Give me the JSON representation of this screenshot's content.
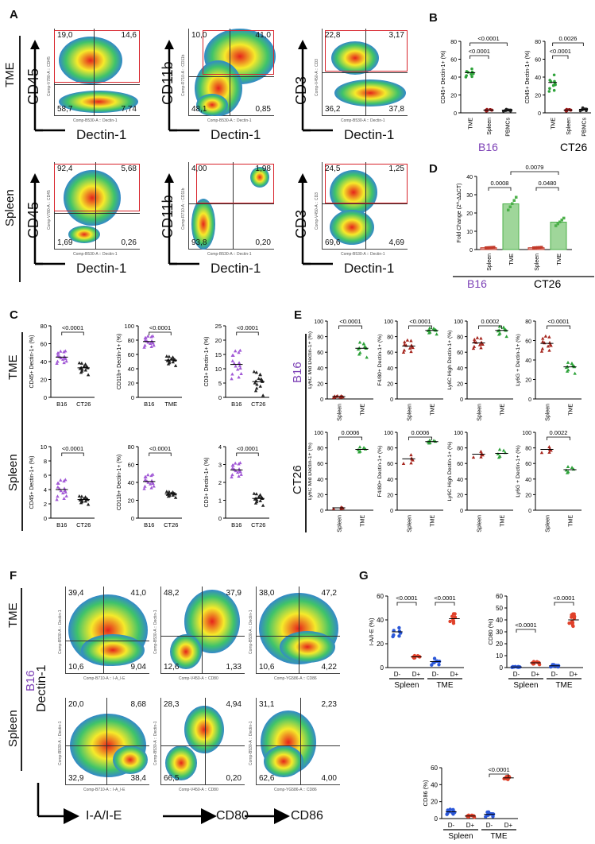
{
  "panels": {
    "A": {
      "letter": "A",
      "rows": [
        "TME",
        "Spleen"
      ],
      "xlabel": "Dectin-1",
      "plots": [
        {
          "ylabel": "CD45",
          "q": [
            "19,0",
            "14,6",
            "58,7",
            "7,74"
          ],
          "xaxis": "Comp-B530-A :: Dectin-1",
          "yaxis": "Comp-V780-A :: CD45"
        },
        {
          "ylabel": "CD11b",
          "q": [
            "10,0",
            "41,0",
            "48,1",
            "0,85"
          ],
          "xaxis": "Comp-B530-A :: Dectin-1",
          "yaxis": "Comp-R710-A :: CD11b"
        },
        {
          "ylabel": "CD3",
          "q": [
            "22,8",
            "3,17",
            "36,2",
            "37,8"
          ],
          "xaxis": "Comp-B530-A :: Dectin-1",
          "yaxis": "Comp-V450-A :: CD3"
        },
        {
          "ylabel": "CD45",
          "q": [
            "92,4",
            "5,68",
            "1,69",
            "0,26"
          ],
          "xaxis": "Comp-B530-A :: Dectin-1",
          "yaxis": "Comp-V780-A :: CD45"
        },
        {
          "ylabel": "CD11b",
          "q": [
            "4,00",
            "1,98",
            "93,8",
            "0,20"
          ],
          "xaxis": "Comp-B530-A :: Dectin-1",
          "yaxis": "Comp-R710-A :: CD11b"
        },
        {
          "ylabel": "CD3",
          "q": [
            "24,5",
            "1,25",
            "69,6",
            "4,69"
          ],
          "xaxis": "Comp-B530-A :: Dectin-1",
          "yaxis": "Comp-V450-A :: CD3"
        }
      ]
    },
    "B": {
      "letter": "B",
      "groups": [
        {
          "name": "B16",
          "ylabel": "CD45+ Dectin-1+ (%)",
          "cats": [
            "TME",
            "Spleen",
            "PBMCs"
          ],
          "p": [
            "<0.0001",
            "<0.0001"
          ]
        },
        {
          "name": "CT26",
          "ylabel": "CD45+ Dectin-1+ (%)",
          "cats": [
            "TME",
            "Spleen",
            "PBMCs"
          ],
          "p": [
            "0.0026",
            "<0.0001"
          ]
        }
      ],
      "yticks": [
        "0",
        "20",
        "40",
        "60",
        "80"
      ]
    },
    "D": {
      "letter": "D",
      "ylabel": "Fold Change (2^-ΔΔCT)",
      "cats": [
        "Spleen",
        "TME",
        "Spleen",
        "TME"
      ],
      "groups": [
        "B16",
        "CT26"
      ],
      "p": [
        "0.0008",
        "0.0079",
        "0.0480"
      ],
      "yticks": [
        "0",
        "10",
        "20",
        "30",
        "40"
      ]
    },
    "C": {
      "letter": "C",
      "rows": [
        "TME",
        "Spleen"
      ],
      "cats": [
        "B16",
        "CT26"
      ],
      "tme": [
        {
          "ylabel": "CD45+ Dectin-1+ (%)",
          "p": "<0.0001",
          "yticks": [
            "0",
            "20",
            "40",
            "60",
            "80"
          ],
          "cat2": "CT26"
        },
        {
          "ylabel": "CD11b+ Dectin-1+ (%)",
          "p": "<0.0001",
          "yticks": [
            "0",
            "20",
            "40",
            "60",
            "80",
            "100"
          ],
          "cat2": "TME"
        },
        {
          "ylabel": "CD3+ Dectin-1+ (%)",
          "p": "<0.0001",
          "yticks": [
            "0",
            "5",
            "10",
            "15",
            "20",
            "25"
          ],
          "cat2": "CT26"
        }
      ],
      "spleen": [
        {
          "ylabel": "CD45+ Dectin-1+ (%)",
          "p": "<0.0001",
          "yticks": [
            "0",
            "2",
            "4",
            "6",
            "8",
            "10"
          ]
        },
        {
          "ylabel": "CD11b+ Dectin-1+ (%)",
          "p": "<0.0001",
          "yticks": [
            "0",
            "20",
            "40",
            "60",
            "80"
          ]
        },
        {
          "ylabel": "CD3+ Dectin-1+ (%)",
          "p": "<0.0001",
          "yticks": [
            "0",
            "1",
            "2",
            "3",
            "4"
          ]
        }
      ]
    },
    "E": {
      "letter": "E",
      "rows": [
        "B16",
        "CT26"
      ],
      "cats": [
        "Spleen",
        "TME"
      ],
      "b16": [
        {
          "ylabel": "Ly6C Mid Dectin-1+ (%)",
          "p": "<0.0001",
          "yticks": [
            "0",
            "20",
            "40",
            "60",
            "80",
            "100"
          ]
        },
        {
          "ylabel": "F4/80+ Dectin-1+ (%)",
          "p": "<0.0001",
          "yticks": [
            "0",
            "20",
            "40",
            "60",
            "80",
            "100"
          ]
        },
        {
          "ylabel": "Ly6C High Dectin-1+ (%)",
          "p": "0.0002",
          "yticks": [
            "0",
            "20",
            "40",
            "60",
            "80",
            "100"
          ]
        },
        {
          "ylabel": "Ly6G + Dectin-1+ (%)",
          "p": "<0.0001",
          "yticks": [
            "0",
            "20",
            "40",
            "60",
            "80"
          ]
        }
      ],
      "ct26": [
        {
          "ylabel": "Ly6C Mid Dectin-1+ (%)",
          "p": "0.0006",
          "yticks": [
            "0",
            "20",
            "40",
            "60",
            "80",
            "100"
          ]
        },
        {
          "ylabel": "F4/80+ Dectin-1+ (%)",
          "p": "0.0006",
          "yticks": [
            "0",
            "20",
            "40",
            "60",
            "80",
            "100"
          ]
        },
        {
          "ylabel": "Ly6C High Dectin-1+ (%)",
          "p": "",
          "yticks": [
            "0",
            "20",
            "40",
            "60",
            "80",
            "100"
          ]
        },
        {
          "ylabel": "Ly6G + Dectin-1+ (%)",
          "p": "0.0022",
          "yticks": [
            "0",
            "20",
            "40",
            "60",
            "80",
            "100"
          ]
        }
      ]
    },
    "F": {
      "letter": "F",
      "rows": [
        "TME",
        "Spleen"
      ],
      "tumor": "B16",
      "ylabel": "Dectin-1",
      "xlabels": [
        "I-A/I-E",
        "CD80",
        "CD86"
      ],
      "plots": [
        {
          "q": [
            "39,4",
            "41,0",
            "10,6",
            "9,04"
          ],
          "xaxis": "Comp-B710-A :: I-A_I-E"
        },
        {
          "q": [
            "48,2",
            "37,9",
            "12,6",
            "1,33"
          ],
          "xaxis": "Comp-V450-A :: CD80"
        },
        {
          "q": [
            "38,0",
            "47,2",
            "10,6",
            "4,22"
          ],
          "xaxis": "Comp-YG586-A :: CD86"
        },
        {
          "q": [
            "20,0",
            "8,68",
            "32,9",
            "38,4"
          ],
          "xaxis": "Comp-B710-A :: I-A_I-E"
        },
        {
          "q": [
            "28,3",
            "4,94",
            "66,5",
            "0,20"
          ],
          "xaxis": "Comp-V450-A :: CD80"
        },
        {
          "q": [
            "31,1",
            "2,23",
            "62,6",
            "4,00"
          ],
          "xaxis": "Comp-YG586-A :: CD86"
        }
      ]
    },
    "G": {
      "letter": "G",
      "plots": [
        {
          "ylabel": "I-A/I-E (%)",
          "p": [
            "<0.0001",
            "<0.0001"
          ],
          "yticks": [
            "0",
            "20",
            "40",
            "60"
          ]
        },
        {
          "ylabel": "CD80 (%)",
          "p": [
            "<0.0001",
            "<0.0001"
          ],
          "yticks": [
            "0",
            "10",
            "20",
            "30",
            "40",
            "50",
            "60"
          ]
        },
        {
          "ylabel": "CD86 (%)",
          "p": [
            "<0.0001"
          ],
          "yticks": [
            "0",
            "20",
            "40",
            "60"
          ]
        }
      ],
      "cats": [
        "D-",
        "D+",
        "D-",
        "D+"
      ],
      "groups": [
        "Spleen",
        "TME"
      ]
    }
  },
  "chart_data": [
    {
      "type": "scatter",
      "title": "B: B16 CD45+ Dectin-1+ (%)",
      "categories": [
        "TME",
        "Spleen",
        "PBMCs"
      ],
      "values": [
        45,
        3,
        3
      ],
      "ylim": [
        0,
        80
      ]
    },
    {
      "type": "scatter",
      "title": "B: CT26 CD45+ Dectin-1+ (%)",
      "categories": [
        "TME",
        "Spleen",
        "PBMCs"
      ],
      "values": [
        34,
        3,
        4
      ],
      "ylim": [
        0,
        80
      ]
    },
    {
      "type": "bar",
      "title": "D: Fold Change",
      "categories": [
        "B16 Spleen",
        "B16 TME",
        "CT26 Spleen",
        "CT26 TME"
      ],
      "values": [
        1,
        25,
        1,
        15
      ],
      "ylim": [
        0,
        40
      ]
    },
    {
      "type": "scatter",
      "title": "C TME CD45+ Dectin-1+",
      "categories": [
        "B16",
        "CT26"
      ],
      "values": [
        45,
        33
      ],
      "ylim": [
        0,
        80
      ]
    },
    {
      "type": "scatter",
      "title": "C TME CD11b+ Dectin-1+",
      "categories": [
        "B16",
        "TME"
      ],
      "values": [
        78,
        52
      ],
      "ylim": [
        0,
        100
      ]
    },
    {
      "type": "scatter",
      "title": "C TME CD3+ Dectin-1+",
      "categories": [
        "B16",
        "CT26"
      ],
      "values": [
        11.5,
        5.5
      ],
      "ylim": [
        0,
        25
      ]
    },
    {
      "type": "scatter",
      "title": "C Spleen CD45+ Dectin-1+",
      "categories": [
        "B16",
        "CT26"
      ],
      "values": [
        4,
        2.6
      ],
      "ylim": [
        0,
        10
      ]
    },
    {
      "type": "scatter",
      "title": "C Spleen CD11b+ Dectin-1+",
      "categories": [
        "B16",
        "CT26"
      ],
      "values": [
        41,
        27
      ],
      "ylim": [
        0,
        80
      ]
    },
    {
      "type": "scatter",
      "title": "C Spleen CD3+ Dectin-1+",
      "categories": [
        "B16",
        "CT26"
      ],
      "values": [
        2.7,
        1.1
      ],
      "ylim": [
        0,
        4
      ]
    },
    {
      "type": "scatter",
      "title": "E B16 Ly6C Mid",
      "categories": [
        "Spleen",
        "TME"
      ],
      "values": [
        3,
        65
      ],
      "ylim": [
        0,
        100
      ]
    },
    {
      "type": "scatter",
      "title": "E B16 F4/80+",
      "categories": [
        "Spleen",
        "TME"
      ],
      "values": [
        68,
        88
      ],
      "ylim": [
        0,
        100
      ]
    },
    {
      "type": "scatter",
      "title": "E B16 Ly6C High",
      "categories": [
        "Spleen",
        "TME"
      ],
      "values": [
        72,
        88
      ],
      "ylim": [
        0,
        100
      ]
    },
    {
      "type": "scatter",
      "title": "E B16 Ly6G+",
      "categories": [
        "Spleen",
        "TME"
      ],
      "values": [
        57,
        33
      ],
      "ylim": [
        0,
        80
      ]
    },
    {
      "type": "scatter",
      "title": "E CT26 Ly6C Mid",
      "categories": [
        "Spleen",
        "TME"
      ],
      "values": [
        3,
        78
      ],
      "ylim": [
        0,
        100
      ]
    },
    {
      "type": "scatter",
      "title": "E CT26 F4/80+",
      "categories": [
        "Spleen",
        "TME"
      ],
      "values": [
        66,
        88
      ],
      "ylim": [
        0,
        100
      ]
    },
    {
      "type": "scatter",
      "title": "E CT26 Ly6C High",
      "categories": [
        "Spleen",
        "TME"
      ],
      "values": [
        72,
        73
      ],
      "ylim": [
        0,
        100
      ]
    },
    {
      "type": "scatter",
      "title": "E CT26 Ly6G+",
      "categories": [
        "Spleen",
        "TME"
      ],
      "values": [
        78,
        52
      ],
      "ylim": [
        0,
        100
      ]
    },
    {
      "type": "scatter",
      "title": "G I-A/I-E (%)",
      "categories": [
        "Spleen D-",
        "Spleen D+",
        "TME D-",
        "TME D+"
      ],
      "values": [
        30,
        9,
        5,
        41
      ],
      "ylim": [
        0,
        60
      ]
    },
    {
      "type": "scatter",
      "title": "G CD80 (%)",
      "categories": [
        "Spleen D-",
        "Spleen D+",
        "TME D-",
        "TME D+"
      ],
      "values": [
        0.5,
        4,
        1.5,
        40
      ],
      "ylim": [
        0,
        60
      ]
    },
    {
      "type": "scatter",
      "title": "G CD86 (%)",
      "categories": [
        "Spleen D-",
        "Spleen D+",
        "TME D-",
        "TME D+"
      ],
      "values": [
        8,
        3,
        5,
        48
      ],
      "ylim": [
        0,
        60
      ]
    }
  ]
}
